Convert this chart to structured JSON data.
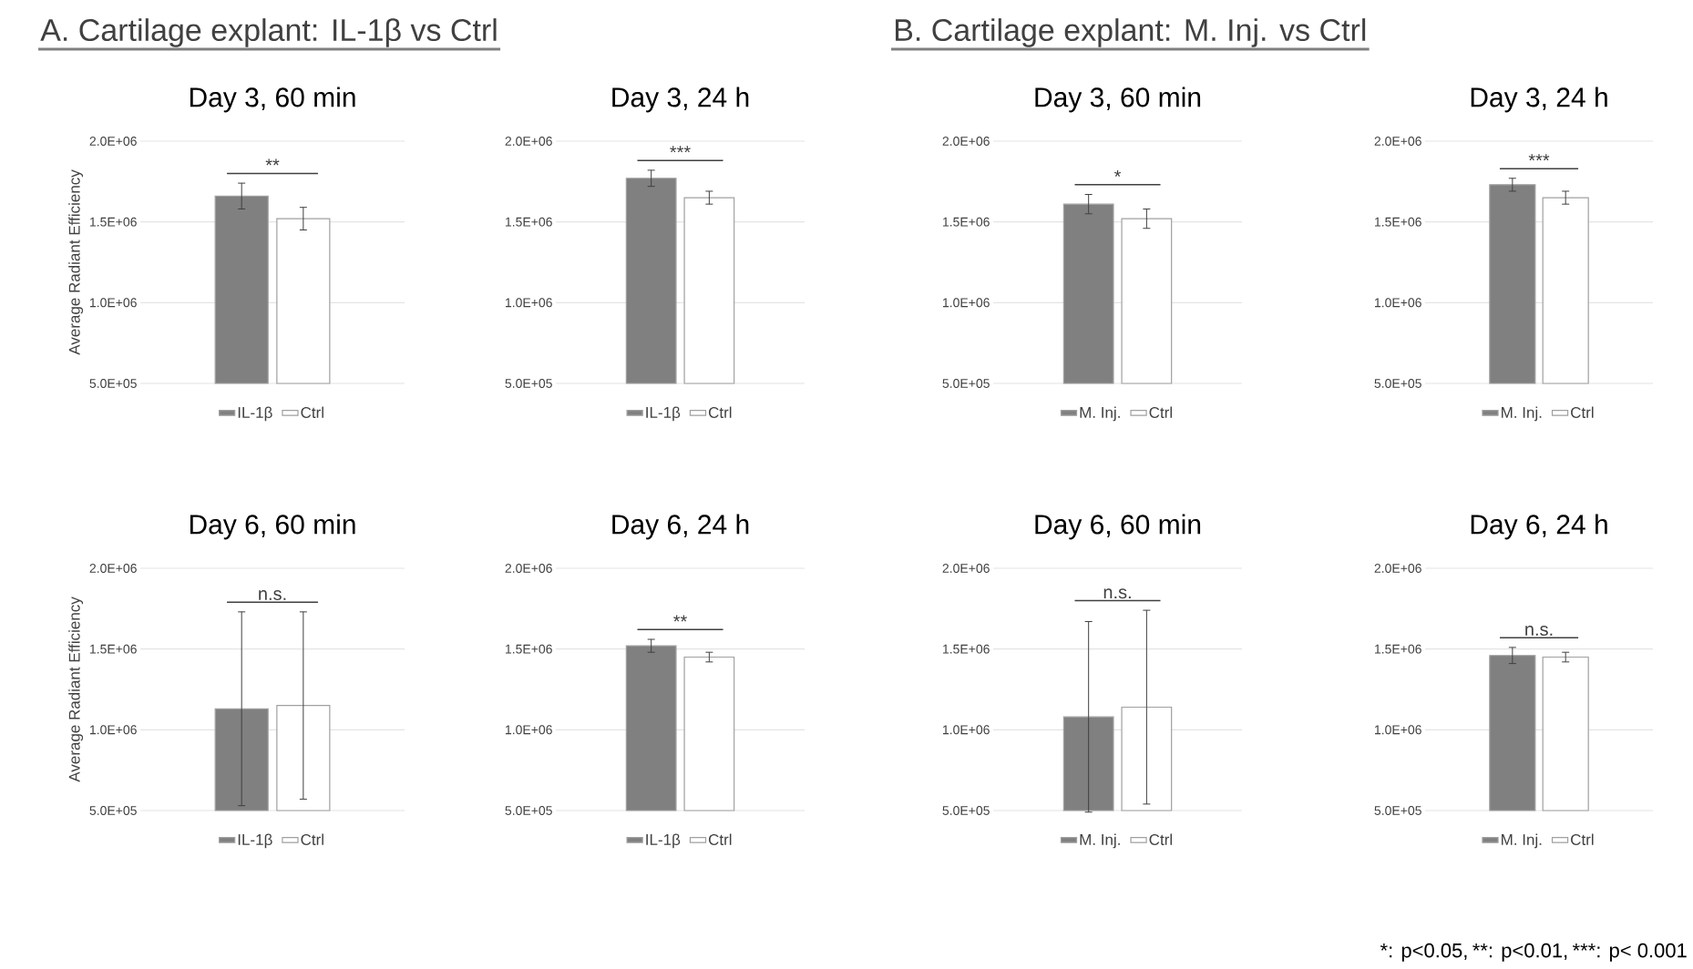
{
  "chart_data": [
    {
      "type": "bar",
      "title": "Day 3, 60 min",
      "ylabel": "Average Radiant Efficiency",
      "categories": [
        null
      ],
      "ylim": [
        500000,
        2000000
      ],
      "yticks": [
        {
          "value": 500000,
          "label": "5.0E+05"
        },
        {
          "value": 1000000,
          "label": "1.0E+06"
        },
        {
          "value": 1500000,
          "label": "1.5E+06"
        },
        {
          "value": 2000000,
          "label": "2.0E+06"
        }
      ],
      "grid": "y",
      "legend": "bottom",
      "series": [
        {
          "name": "IL-1β",
          "color": "#808080",
          "values": [
            1660000
          ],
          "errors": [
            80000
          ]
        },
        {
          "name": "Ctrl",
          "color": "#ffffff",
          "values": [
            1520000
          ],
          "errors": [
            70000
          ]
        }
      ],
      "annotations": [
        "**",
        "A. Cartilage explant: IL-1β vs Ctrl"
      ]
    },
    {
      "type": "bar",
      "title": "Day 3, 24 h",
      "categories": [
        null
      ],
      "ylim": [
        500000,
        2000000
      ],
      "yticks": [
        {
          "value": 500000,
          "label": "5.0E+05"
        },
        {
          "value": 1000000,
          "label": "1.0E+06"
        },
        {
          "value": 1500000,
          "label": "1.5E+06"
        },
        {
          "value": 2000000,
          "label": "2.0E+06"
        }
      ],
      "grid": "y",
      "legend": "bottom",
      "series": [
        {
          "name": "IL-1β",
          "color": "#808080",
          "values": [
            1770000
          ],
          "errors": [
            50000
          ]
        },
        {
          "name": "Ctrl",
          "color": "#ffffff",
          "values": [
            1650000
          ],
          "errors": [
            40000
          ]
        }
      ],
      "annotations": [
        "***"
      ]
    },
    {
      "type": "bar",
      "title": "Day 3, 60 min",
      "categories": [
        null
      ],
      "ylim": [
        500000,
        2000000
      ],
      "yticks": [
        {
          "value": 500000,
          "label": "5.0E+05"
        },
        {
          "value": 1000000,
          "label": "1.0E+06"
        },
        {
          "value": 1500000,
          "label": "1.5E+06"
        },
        {
          "value": 2000000,
          "label": "2.0E+06"
        }
      ],
      "grid": "y",
      "legend": "bottom",
      "series": [
        {
          "name": "M. Inj.",
          "color": "#808080",
          "values": [
            1610000
          ],
          "errors": [
            60000
          ]
        },
        {
          "name": "Ctrl",
          "color": "#ffffff",
          "values": [
            1520000
          ],
          "errors": [
            60000
          ]
        }
      ],
      "annotations": [
        "*",
        "B. Cartilage explant: M. Inj. vs Ctrl"
      ]
    },
    {
      "type": "bar",
      "title": "Day 3, 24 h",
      "categories": [
        null
      ],
      "ylim": [
        500000,
        2000000
      ],
      "yticks": [
        {
          "value": 500000,
          "label": "5.0E+05"
        },
        {
          "value": 1000000,
          "label": "1.0E+06"
        },
        {
          "value": 1500000,
          "label": "1.5E+06"
        },
        {
          "value": 2000000,
          "label": "2.0E+06"
        }
      ],
      "grid": "y",
      "legend": "bottom",
      "series": [
        {
          "name": "M. Inj.",
          "color": "#808080",
          "values": [
            1730000
          ],
          "errors": [
            40000
          ]
        },
        {
          "name": "Ctrl",
          "color": "#ffffff",
          "values": [
            1650000
          ],
          "errors": [
            40000
          ]
        }
      ],
      "annotations": [
        "***"
      ]
    },
    {
      "type": "bar",
      "title": "Day 6, 60 min",
      "ylabel": "Average Radiant Efficiency",
      "categories": [
        null
      ],
      "ylim": [
        500000,
        2000000
      ],
      "yticks": [
        {
          "value": 500000,
          "label": "5.0E+05"
        },
        {
          "value": 1000000,
          "label": "1.0E+06"
        },
        {
          "value": 1500000,
          "label": "1.5E+06"
        },
        {
          "value": 2000000,
          "label": "2.0E+06"
        }
      ],
      "grid": "y",
      "legend": "bottom",
      "series": [
        {
          "name": "IL-1β",
          "color": "#808080",
          "values": [
            1130000
          ],
          "errors": [
            600000
          ]
        },
        {
          "name": "Ctrl",
          "color": "#ffffff",
          "values": [
            1150000
          ],
          "errors": [
            580000
          ]
        }
      ],
      "annotations": [
        "n.s."
      ]
    },
    {
      "type": "bar",
      "title": "Day 6, 24 h",
      "categories": [
        null
      ],
      "ylim": [
        500000,
        2000000
      ],
      "yticks": [
        {
          "value": 500000,
          "label": "5.0E+05"
        },
        {
          "value": 1000000,
          "label": "1.0E+06"
        },
        {
          "value": 1500000,
          "label": "1.5E+06"
        },
        {
          "value": 2000000,
          "label": "2.0E+06"
        }
      ],
      "grid": "y",
      "legend": "bottom",
      "series": [
        {
          "name": "IL-1β",
          "color": "#808080",
          "values": [
            1520000
          ],
          "errors": [
            40000
          ]
        },
        {
          "name": "Ctrl",
          "color": "#ffffff",
          "values": [
            1450000
          ],
          "errors": [
            30000
          ]
        }
      ],
      "annotations": [
        "**"
      ]
    },
    {
      "type": "bar",
      "title": "Day 6, 60 min",
      "categories": [
        null
      ],
      "ylim": [
        500000,
        2000000
      ],
      "yticks": [
        {
          "value": 500000,
          "label": "5.0E+05"
        },
        {
          "value": 1000000,
          "label": "1.0E+06"
        },
        {
          "value": 1500000,
          "label": "1.5E+06"
        },
        {
          "value": 2000000,
          "label": "2.0E+06"
        }
      ],
      "grid": "y",
      "legend": "bottom",
      "series": [
        {
          "name": "M. Inj.",
          "color": "#808080",
          "values": [
            1080000
          ],
          "errors": [
            590000
          ]
        },
        {
          "name": "Ctrl",
          "color": "#ffffff",
          "values": [
            1140000
          ],
          "errors": [
            600000
          ]
        }
      ],
      "annotations": [
        "n.s."
      ]
    },
    {
      "type": "bar",
      "title": "Day 6, 24 h",
      "categories": [
        null
      ],
      "ylim": [
        500000,
        2000000
      ],
      "yticks": [
        {
          "value": 500000,
          "label": "5.0E+05"
        },
        {
          "value": 1000000,
          "label": "1.0E+06"
        },
        {
          "value": 1500000,
          "label": "1.5E+06"
        },
        {
          "value": 2000000,
          "label": "2.0E+06"
        }
      ],
      "grid": "y",
      "legend": "bottom",
      "series": [
        {
          "name": "M. Inj.",
          "color": "#808080",
          "values": [
            1460000
          ],
          "errors": [
            50000
          ]
        },
        {
          "name": "Ctrl",
          "color": "#ffffff",
          "values": [
            1450000
          ],
          "errors": [
            30000
          ]
        }
      ],
      "annotations": [
        "n.s.",
        "*: p<0.05,",
        "**: p<0.01,",
        "***: p< 0.001"
      ]
    }
  ]
}
